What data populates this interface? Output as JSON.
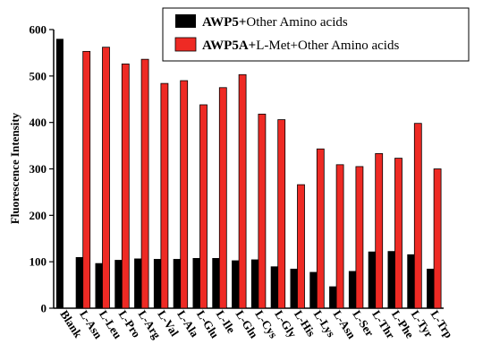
{
  "chart_data": {
    "type": "bar",
    "ylabel": "Fluorescence Intensity",
    "xlabel": "",
    "ylim": [
      0,
      600
    ],
    "yticks": [
      0,
      100,
      200,
      300,
      400,
      500,
      600
    ],
    "categories": [
      "Blank",
      "L-Asn",
      "L-Leu",
      "L-Pro",
      "L-Arg",
      "L-Val",
      "L-Ala",
      "L-Glu",
      "L-Ile",
      "L-Gln",
      "L-Cys",
      "L-Gly",
      "L-His",
      "L-Lys",
      "L-Asn",
      "L-Ser",
      "L-Thr",
      "L-Phe",
      "L-Tyr",
      "L-Trp"
    ],
    "legend_position": "top-right",
    "series": [
      {
        "name_bold": "AWP5+",
        "name_rest": "Other Amino acids",
        "color": "#000000",
        "values": [
          580,
          110,
          97,
          104,
          107,
          106,
          106,
          108,
          108,
          103,
          105,
          90,
          85,
          78,
          47,
          80,
          122,
          123,
          116,
          85
        ]
      },
      {
        "name_bold": "AWP5A+",
        "name_rest": "L-Met+Other Amino acids",
        "color": "#ee2a24",
        "values": [
          null,
          553,
          562,
          526,
          536,
          484,
          490,
          438,
          475,
          503,
          418,
          406,
          266,
          343,
          309,
          305,
          333,
          323,
          398,
          300
        ]
      }
    ]
  }
}
